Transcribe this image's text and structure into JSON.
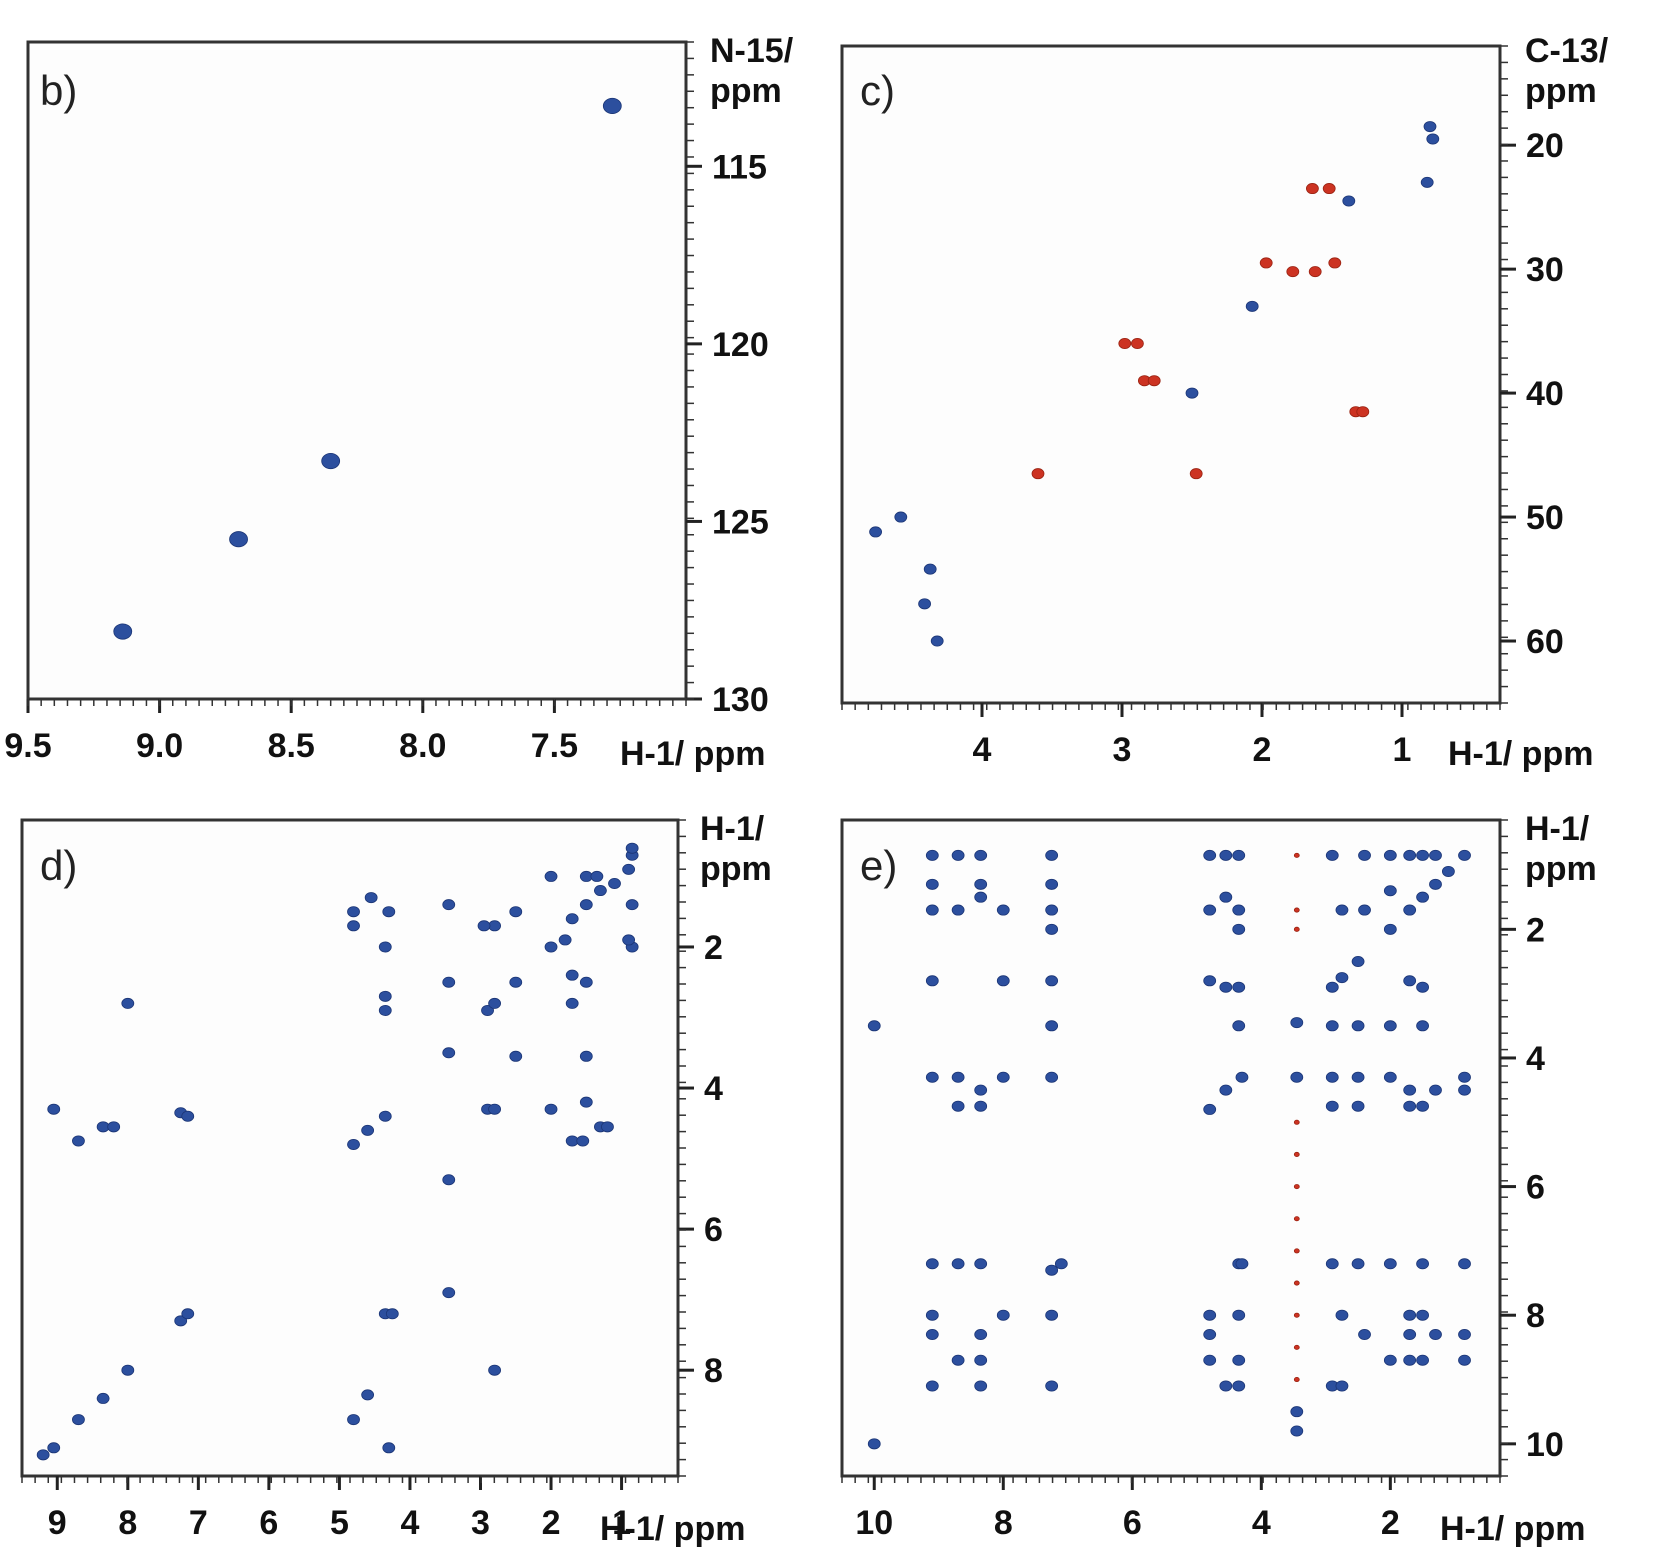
{
  "chart_data": [
    {
      "id": "b",
      "type": "scatter",
      "panel_label": "b)",
      "xlabel": "H-1/ ppm",
      "ylabel_line1": "N-15/",
      "ylabel_line2": "ppm",
      "xlim": [
        9.5,
        7.0
      ],
      "ylim": [
        111.5,
        130
      ],
      "xticks": [
        "9.5",
        "9.0",
        "8.5",
        "8.0",
        "7.5"
      ],
      "yticks": [
        "115",
        "120",
        "125",
        "130"
      ],
      "series": [
        {
          "color": "#2c4f9e",
          "points": [
            [
              9.14,
              128.1
            ],
            [
              8.7,
              125.5
            ],
            [
              8.35,
              123.3
            ],
            [
              7.28,
              113.3
            ]
          ]
        }
      ]
    },
    {
      "id": "c",
      "type": "scatter",
      "panel_label": "c)",
      "xlabel": "H-1/ ppm",
      "ylabel_line1": "C-13/",
      "ylabel_line2": "ppm",
      "xlim": [
        5.0,
        0.3
      ],
      "ylim": [
        12,
        65
      ],
      "xticks": [
        "4",
        "3",
        "2",
        "1"
      ],
      "yticks": [
        "20",
        "30",
        "40",
        "50",
        "60"
      ],
      "series": [
        {
          "color": "#2c4f9e",
          "points": [
            [
              0.8,
              18.5
            ],
            [
              0.78,
              19.5
            ],
            [
              0.82,
              23.0
            ],
            [
              1.38,
              24.5
            ],
            [
              2.07,
              33.0
            ],
            [
              2.5,
              40.0
            ],
            [
              4.58,
              50.0
            ],
            [
              4.76,
              51.2
            ],
            [
              4.37,
              54.2
            ],
            [
              4.41,
              57.0
            ],
            [
              4.32,
              60.0
            ]
          ]
        },
        {
          "color": "#cc3322",
          "points": [
            [
              1.64,
              23.5
            ],
            [
              1.52,
              23.5
            ],
            [
              1.97,
              29.5
            ],
            [
              1.78,
              30.2
            ],
            [
              1.62,
              30.2
            ],
            [
              1.48,
              29.5
            ],
            [
              2.98,
              36.0
            ],
            [
              2.89,
              36.0
            ],
            [
              2.84,
              39.0
            ],
            [
              2.77,
              39.0
            ],
            [
              1.33,
              41.5
            ],
            [
              1.28,
              41.5
            ],
            [
              3.6,
              46.5
            ],
            [
              2.47,
              46.5
            ]
          ]
        }
      ]
    },
    {
      "id": "d",
      "type": "scatter",
      "panel_label": "d)",
      "xlabel": "H-1/ ppm",
      "ylabel_line1": "H-1/",
      "ylabel_line2": "ppm",
      "xlim": [
        9.5,
        0.2
      ],
      "ylim": [
        0.2,
        9.5
      ],
      "xticks": [
        "9",
        "8",
        "7",
        "6",
        "5",
        "4",
        "3",
        "2",
        "1"
      ],
      "yticks": [
        "2",
        "4",
        "6",
        "8"
      ],
      "series": [
        {
          "color": "#2c4f9e",
          "points": [
            [
              9.2,
              9.2
            ],
            [
              9.05,
              9.1
            ],
            [
              8.7,
              8.7
            ],
            [
              8.35,
              8.4
            ],
            [
              8.0,
              8.0
            ],
            [
              7.25,
              7.3
            ],
            [
              7.15,
              7.2
            ],
            [
              4.8,
              4.8
            ],
            [
              4.6,
              4.6
            ],
            [
              4.35,
              4.4
            ],
            [
              3.45,
              3.5
            ],
            [
              2.9,
              2.9
            ],
            [
              2.8,
              2.8
            ],
            [
              2.5,
              2.5
            ],
            [
              2.0,
              2.0
            ],
            [
              1.7,
              1.6
            ],
            [
              1.5,
              1.4
            ],
            [
              1.3,
              1.2
            ],
            [
              1.1,
              1.1
            ],
            [
              0.9,
              0.9
            ],
            [
              0.85,
              0.7
            ],
            [
              8.0,
              2.8
            ],
            [
              2.8,
              8.0
            ],
            [
              9.05,
              4.3
            ],
            [
              8.7,
              4.75
            ],
            [
              8.35,
              4.55
            ],
            [
              8.2,
              4.55
            ],
            [
              7.25,
              4.35
            ],
            [
              7.15,
              4.4
            ],
            [
              4.35,
              7.2
            ],
            [
              4.25,
              7.2
            ],
            [
              4.6,
              8.35
            ],
            [
              4.8,
              8.7
            ],
            [
              4.3,
              9.1
            ],
            [
              4.55,
              1.3
            ],
            [
              4.8,
              1.7
            ],
            [
              4.8,
              1.5
            ],
            [
              4.3,
              1.5
            ],
            [
              4.35,
              2.0
            ],
            [
              4.35,
              2.9
            ],
            [
              4.35,
              2.7
            ],
            [
              2.9,
              4.3
            ],
            [
              2.8,
              4.3
            ],
            [
              1.7,
              4.75
            ],
            [
              1.55,
              4.75
            ],
            [
              1.3,
              4.55
            ],
            [
              1.2,
              4.55
            ],
            [
              2.0,
              4.3
            ],
            [
              1.5,
              4.2
            ],
            [
              1.5,
              3.55
            ],
            [
              2.5,
              3.55
            ],
            [
              1.7,
              2.8
            ],
            [
              1.5,
              2.5
            ],
            [
              2.5,
              1.5
            ],
            [
              2.8,
              1.7
            ],
            [
              2.95,
              1.7
            ],
            [
              3.45,
              1.4
            ],
            [
              3.45,
              2.5
            ],
            [
              2.0,
              1.0
            ],
            [
              1.5,
              1.0
            ],
            [
              1.35,
              1.0
            ],
            [
              0.85,
              1.4
            ],
            [
              0.85,
              2.0
            ],
            [
              0.9,
              1.9
            ],
            [
              0.85,
              0.6
            ],
            [
              3.45,
              5.3
            ],
            [
              3.45,
              6.9
            ],
            [
              1.8,
              1.9
            ],
            [
              1.7,
              2.4
            ]
          ]
        }
      ]
    },
    {
      "id": "e",
      "type": "scatter",
      "panel_label": "e)",
      "xlabel": "H-1/ ppm",
      "ylabel_line1": "H-1/",
      "ylabel_line2": "ppm",
      "xlim": [
        10.5,
        0.3
      ],
      "ylim": [
        0.3,
        10.5
      ],
      "xticks": [
        "10",
        "8",
        "6",
        "4",
        "2"
      ],
      "yticks": [
        "2",
        "4",
        "6",
        "8",
        "10"
      ],
      "series": [
        {
          "color": "#2c4f9e",
          "points": [
            [
              9.1,
              9.1
            ],
            [
              8.7,
              8.7
            ],
            [
              8.35,
              8.3
            ],
            [
              8.0,
              8.0
            ],
            [
              7.25,
              7.3
            ],
            [
              7.1,
              7.2
            ],
            [
              4.8,
              4.8
            ],
            [
              4.55,
              4.5
            ],
            [
              4.3,
              4.3
            ],
            [
              3.45,
              3.45
            ],
            [
              2.9,
              2.9
            ],
            [
              2.75,
              2.75
            ],
            [
              2.5,
              2.5
            ],
            [
              2.0,
              2.0
            ],
            [
              1.7,
              1.7
            ],
            [
              1.5,
              1.5
            ],
            [
              1.3,
              1.3
            ],
            [
              1.1,
              1.1
            ],
            [
              0.85,
              0.85
            ],
            [
              9.1,
              0.85
            ],
            [
              8.7,
              0.85
            ],
            [
              8.35,
              0.85
            ],
            [
              7.25,
              0.85
            ],
            [
              4.8,
              0.85
            ],
            [
              4.55,
              0.85
            ],
            [
              4.35,
              0.85
            ],
            [
              2.9,
              0.85
            ],
            [
              2.4,
              0.85
            ],
            [
              2.0,
              0.85
            ],
            [
              1.7,
              0.85
            ],
            [
              1.5,
              0.85
            ],
            [
              1.3,
              0.85
            ],
            [
              9.1,
              1.3
            ],
            [
              8.35,
              1.3
            ],
            [
              8.35,
              1.5
            ],
            [
              9.1,
              1.7
            ],
            [
              8.7,
              1.7
            ],
            [
              8.0,
              1.7
            ],
            [
              7.25,
              1.3
            ],
            [
              4.8,
              1.7
            ],
            [
              4.55,
              1.5
            ],
            [
              4.35,
              1.7
            ],
            [
              2.75,
              1.7
            ],
            [
              2.4,
              1.7
            ],
            [
              2.0,
              1.4
            ],
            [
              9.1,
              2.8
            ],
            [
              8.0,
              2.8
            ],
            [
              7.25,
              2.8
            ],
            [
              4.8,
              2.8
            ],
            [
              4.55,
              2.9
            ],
            [
              4.35,
              2.9
            ],
            [
              1.7,
              2.8
            ],
            [
              1.5,
              2.9
            ],
            [
              9.1,
              4.3
            ],
            [
              8.7,
              4.3
            ],
            [
              8.35,
              4.5
            ],
            [
              8.0,
              4.3
            ],
            [
              7.25,
              4.3
            ],
            [
              3.45,
              4.3
            ],
            [
              2.9,
              4.3
            ],
            [
              2.5,
              4.3
            ],
            [
              2.0,
              4.3
            ],
            [
              1.7,
              4.5
            ],
            [
              1.3,
              4.5
            ],
            [
              0.85,
              4.3
            ],
            [
              0.85,
              4.5
            ],
            [
              8.7,
              4.75
            ],
            [
              8.35,
              4.75
            ],
            [
              2.9,
              4.75
            ],
            [
              2.5,
              4.75
            ],
            [
              1.7,
              4.75
            ],
            [
              1.5,
              4.75
            ],
            [
              7.25,
              2.0
            ],
            [
              7.25,
              1.7
            ],
            [
              7.25,
              3.5
            ],
            [
              4.35,
              2.0
            ],
            [
              4.35,
              3.5
            ],
            [
              2.9,
              3.5
            ],
            [
              2.5,
              3.5
            ],
            [
              2.0,
              3.5
            ],
            [
              1.5,
              3.5
            ],
            [
              10.0,
              3.5
            ],
            [
              9.1,
              7.2
            ],
            [
              8.7,
              7.2
            ],
            [
              8.35,
              7.2
            ],
            [
              4.35,
              7.2
            ],
            [
              4.3,
              7.2
            ],
            [
              2.9,
              7.2
            ],
            [
              2.5,
              7.2
            ],
            [
              2.0,
              7.2
            ],
            [
              1.5,
              7.2
            ],
            [
              0.85,
              7.2
            ],
            [
              9.1,
              8.0
            ],
            [
              7.25,
              8.0
            ],
            [
              4.8,
              8.0
            ],
            [
              4.35,
              8.0
            ],
            [
              2.75,
              8.0
            ],
            [
              1.7,
              8.0
            ],
            [
              1.5,
              8.0
            ],
            [
              9.1,
              8.3
            ],
            [
              4.8,
              8.3
            ],
            [
              2.4,
              8.3
            ],
            [
              1.7,
              8.3
            ],
            [
              1.3,
              8.3
            ],
            [
              0.85,
              8.3
            ],
            [
              8.35,
              8.7
            ],
            [
              4.8,
              8.7
            ],
            [
              4.35,
              8.7
            ],
            [
              2.0,
              8.7
            ],
            [
              1.7,
              8.7
            ],
            [
              1.5,
              8.7
            ],
            [
              0.85,
              8.7
            ],
            [
              8.35,
              9.1
            ],
            [
              7.25,
              9.1
            ],
            [
              4.55,
              9.1
            ],
            [
              4.35,
              9.1
            ],
            [
              2.9,
              9.1
            ],
            [
              2.75,
              9.1
            ],
            [
              10.0,
              10.0
            ],
            [
              3.45,
              9.5
            ],
            [
              3.45,
              9.8
            ]
          ]
        },
        {
          "color": "#cc3322",
          "points": [
            [
              3.45,
              0.85
            ],
            [
              3.45,
              1.7
            ],
            [
              3.45,
              2.0
            ],
            [
              3.45,
              5.0
            ],
            [
              3.45,
              5.5
            ],
            [
              3.45,
              6.0
            ],
            [
              3.45,
              6.5
            ],
            [
              3.45,
              7.0
            ],
            [
              3.45,
              7.5
            ],
            [
              3.45,
              8.0
            ],
            [
              3.45,
              8.5
            ],
            [
              3.45,
              9.0
            ]
          ]
        }
      ]
    }
  ]
}
